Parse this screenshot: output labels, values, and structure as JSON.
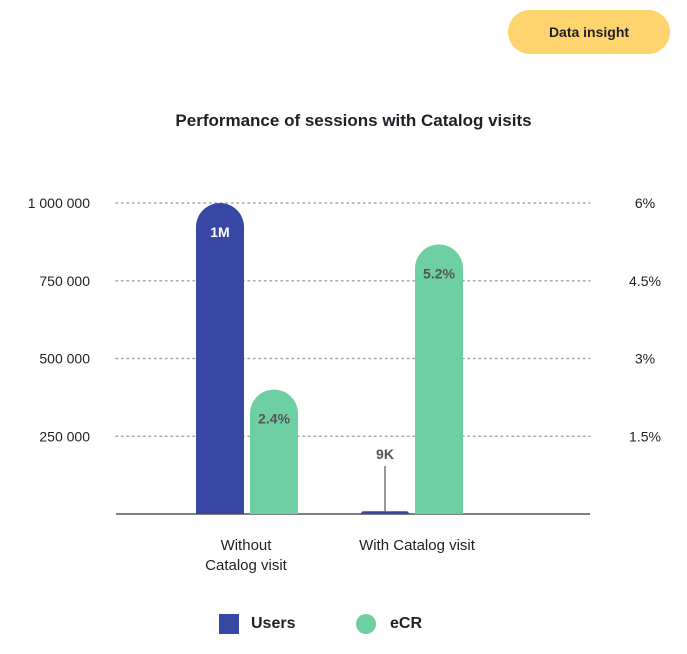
{
  "badge": "Data insight",
  "colors": {
    "users": "#3747a3",
    "ecr": "#6dcfa2",
    "badge": "#ffd36e",
    "grid": "#a7a7a7",
    "axis": "#555555"
  },
  "chart_data": {
    "type": "bar",
    "title": "Performance of sessions with Catalog visits",
    "categories": [
      "Without\nCatalog visit",
      "With Catalog visit"
    ],
    "series": [
      {
        "name": "Users",
        "axis": "left",
        "values": [
          1000000,
          9000
        ],
        "labels": [
          "1M",
          "9K"
        ]
      },
      {
        "name": "eCR",
        "axis": "right",
        "values": [
          2.4,
          5.2
        ],
        "labels": [
          "2.4%",
          "5.2%"
        ]
      }
    ],
    "y_left": {
      "ticks": [
        250000,
        500000,
        750000,
        1000000
      ],
      "tick_labels": [
        "250 000",
        "500 000",
        "750 000",
        "1 000 000"
      ],
      "ylim": [
        0,
        1000000
      ]
    },
    "y_right": {
      "ticks": [
        1.5,
        3,
        4.5,
        6
      ],
      "tick_labels": [
        "1.5%",
        "3%",
        "4.5%",
        "6%"
      ],
      "ylim": [
        0,
        6
      ]
    },
    "grid": true,
    "legend": "bottom"
  }
}
